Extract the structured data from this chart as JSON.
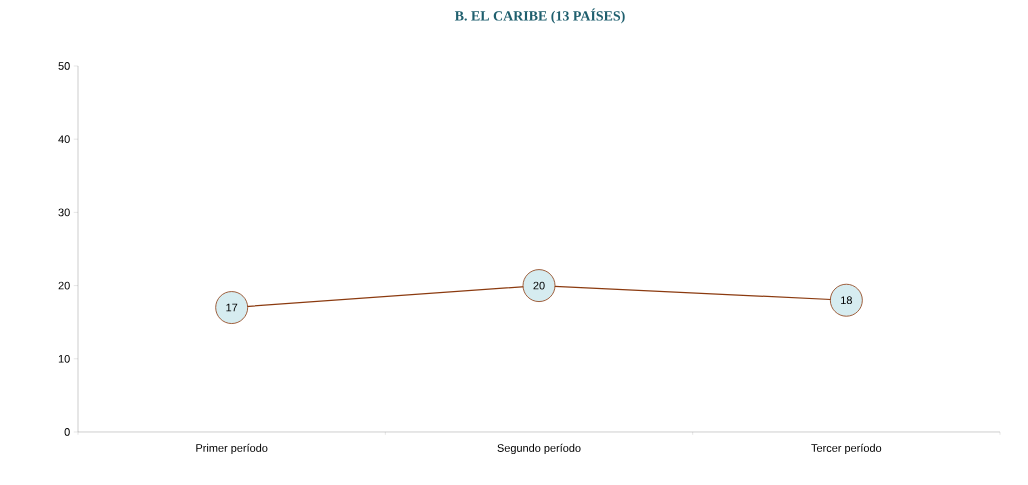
{
  "chart_data": {
    "type": "line",
    "title": "B.          EL CARIBE (13 PAÍSES)",
    "categories": [
      "Primer período",
      "Segundo período",
      "Tercer período"
    ],
    "series": [
      {
        "color": "#8b3a0f",
        "values": [
          17,
          20,
          18
        ]
      }
    ],
    "ylim": [
      0,
      50
    ],
    "yticks": [
      0,
      10,
      20,
      30,
      40,
      50
    ],
    "grid": false,
    "marker": "circle",
    "data_labels": true
  }
}
